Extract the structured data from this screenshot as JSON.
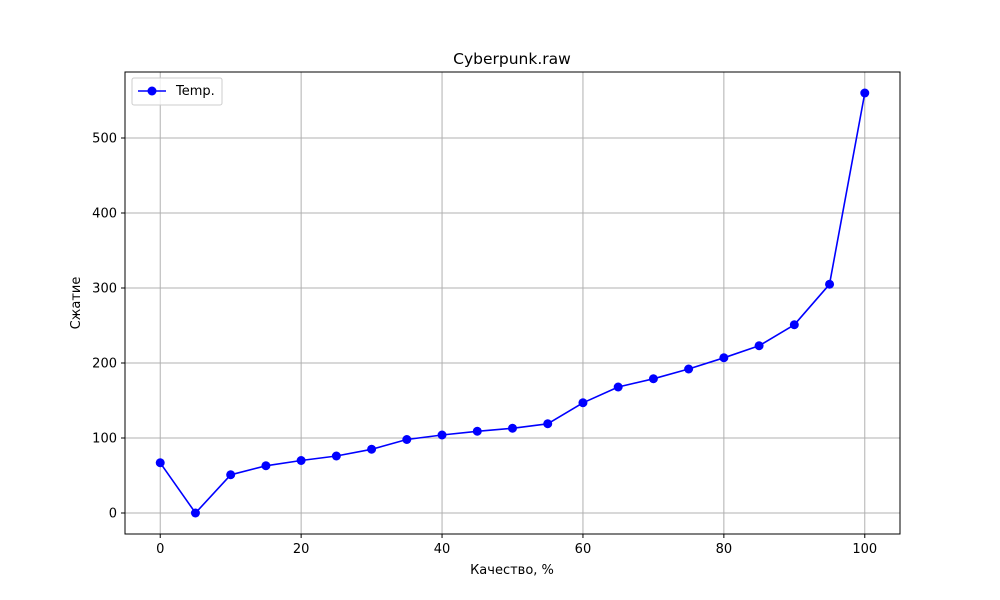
{
  "chart_data": {
    "type": "line",
    "title": "Cyberpunk.raw",
    "xlabel": "Качество, %",
    "ylabel": "Сжатие",
    "xlim": [
      -5,
      105
    ],
    "ylim": [
      -28,
      588
    ],
    "xticks": [
      0,
      20,
      40,
      60,
      80,
      100
    ],
    "yticks": [
      0,
      100,
      200,
      300,
      400,
      500
    ],
    "grid": true,
    "legend_position": "upper-left",
    "series": [
      {
        "name": "Temp.",
        "color": "#0000ff",
        "marker": "circle",
        "x": [
          0,
          5,
          10,
          15,
          20,
          25,
          30,
          35,
          40,
          45,
          50,
          55,
          60,
          65,
          70,
          75,
          80,
          85,
          90,
          95,
          100
        ],
        "y": [
          67,
          0,
          51,
          63,
          70,
          76,
          85,
          98,
          104,
          109,
          113,
          119,
          147,
          168,
          179,
          192,
          207,
          223,
          251,
          305,
          560
        ]
      }
    ]
  }
}
